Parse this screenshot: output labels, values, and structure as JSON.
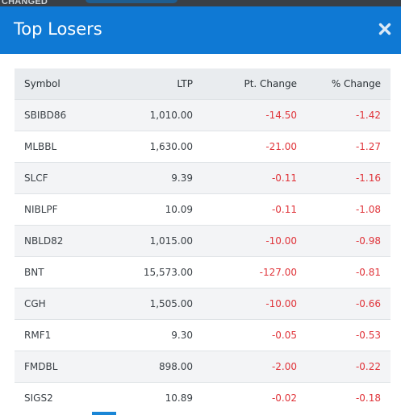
{
  "backdrop": {
    "text": "CHANGED"
  },
  "modal": {
    "title": "Top Losers",
    "close_icon": "close-icon"
  },
  "table": {
    "headers": {
      "symbol": "Symbol",
      "ltp": "LTP",
      "pt_change": "Pt. Change",
      "pct_change": "% Change"
    },
    "rows": [
      {
        "symbol": "SBIBD86",
        "ltp": "1,010.00",
        "pt_change": "-14.50",
        "pct_change": "-1.42"
      },
      {
        "symbol": "MLBBL",
        "ltp": "1,630.00",
        "pt_change": "-21.00",
        "pct_change": "-1.27"
      },
      {
        "symbol": "SLCF",
        "ltp": "9.39",
        "pt_change": "-0.11",
        "pct_change": "-1.16"
      },
      {
        "symbol": "NIBLPF",
        "ltp": "10.09",
        "pt_change": "-0.11",
        "pct_change": "-1.08"
      },
      {
        "symbol": "NBLD82",
        "ltp": "1,015.00",
        "pt_change": "-10.00",
        "pct_change": "-0.98"
      },
      {
        "symbol": "BNT",
        "ltp": "15,573.00",
        "pt_change": "-127.00",
        "pct_change": "-0.81"
      },
      {
        "symbol": "CGH",
        "ltp": "1,505.00",
        "pt_change": "-10.00",
        "pct_change": "-0.66"
      },
      {
        "symbol": "RMF1",
        "ltp": "9.30",
        "pt_change": "-0.05",
        "pct_change": "-0.53"
      },
      {
        "symbol": "FMDBL",
        "ltp": "898.00",
        "pt_change": "-2.00",
        "pct_change": "-0.22"
      },
      {
        "symbol": "SIGS2",
        "ltp": "10.89",
        "pt_change": "-0.02",
        "pct_change": "-0.18"
      }
    ]
  },
  "colors": {
    "header_blue": "#0f79d4",
    "negative_red": "#e0343a",
    "row_stripe": "#f3f4f6"
  }
}
